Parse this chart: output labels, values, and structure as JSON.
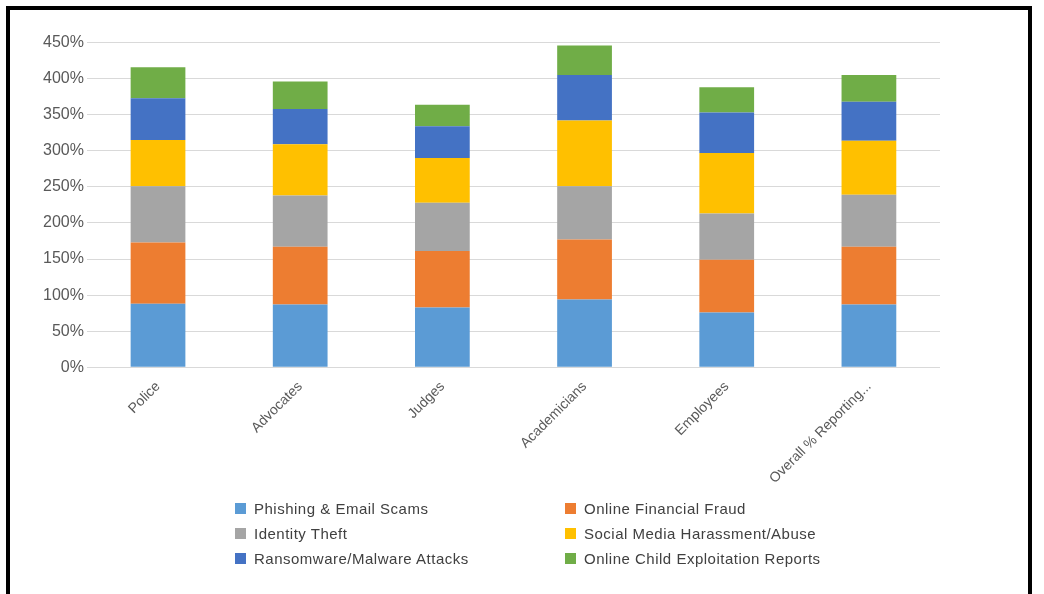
{
  "chart_data": {
    "type": "bar",
    "stacked": true,
    "categories": [
      "Police",
      "Advocates",
      "Judges",
      "Academicians",
      "Employees",
      "Overall % Reporting..."
    ],
    "series": [
      {
        "name": "Phishing & Email Scams",
        "color": "#5b9bd5",
        "values": [
          88,
          87,
          83,
          94,
          76,
          87
        ]
      },
      {
        "name": "Online Financial Fraud",
        "color": "#ed7d31",
        "values": [
          85,
          80,
          78,
          83,
          73,
          80
        ]
      },
      {
        "name": "Identity Theft",
        "color": "#a5a5a5",
        "values": [
          78,
          71,
          67,
          74,
          64,
          72
        ]
      },
      {
        "name": "Social Media Harassment/Abuse",
        "color": "#ffc000",
        "values": [
          64,
          71,
          62,
          91,
          84,
          75
        ]
      },
      {
        "name": "Ransomware/Malware Attacks",
        "color": "#4472c4",
        "values": [
          58,
          49,
          44,
          63,
          56,
          54
        ]
      },
      {
        "name": "Online Child Exploitation Reports",
        "color": "#70ad47",
        "values": [
          43,
          38,
          30,
          41,
          35,
          37
        ]
      }
    ],
    "ylim": [
      0,
      450
    ],
    "yticks": [
      {
        "value": 0,
        "label": "0%"
      },
      {
        "value": 50,
        "label": "50%"
      },
      {
        "value": 100,
        "label": "100%"
      },
      {
        "value": 150,
        "label": "150%"
      },
      {
        "value": 200,
        "label": "200%"
      },
      {
        "value": 250,
        "label": "250%"
      },
      {
        "value": 300,
        "label": "300%"
      },
      {
        "value": 350,
        "label": "350%"
      },
      {
        "value": 400,
        "label": "400%"
      },
      {
        "value": 450,
        "label": "450%"
      }
    ],
    "grid": "y",
    "legend": "bottom"
  }
}
